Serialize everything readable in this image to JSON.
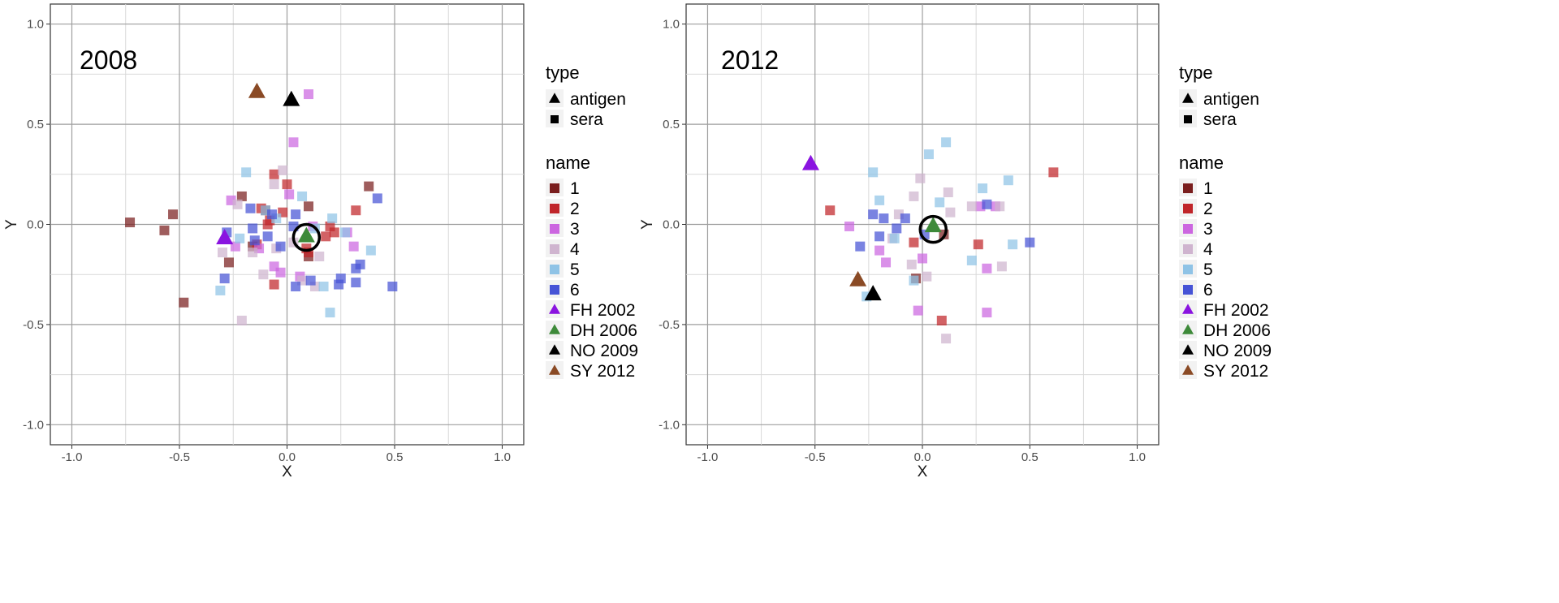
{
  "colors": {
    "1": "#7a1e1e",
    "2": "#c0252a",
    "3": "#cc66e0",
    "4": "#cfb4cf",
    "5": "#8fc3e6",
    "6": "#4653d6",
    "FH 2002": "#8a14e0",
    "DH 2006": "#3e8a3a",
    "NO 2009": "#000000",
    "SY 2012": "#8a4a25"
  },
  "legend": {
    "type_title": "type",
    "type_items": [
      {
        "label": "antigen",
        "shape": "triangle"
      },
      {
        "label": "sera",
        "shape": "square"
      }
    ],
    "name_title": "name",
    "name_items": [
      {
        "label": "1",
        "key": "1",
        "shape": "square"
      },
      {
        "label": "2",
        "key": "2",
        "shape": "square"
      },
      {
        "label": "3",
        "key": "3",
        "shape": "square"
      },
      {
        "label": "4",
        "key": "4",
        "shape": "square"
      },
      {
        "label": "5",
        "key": "5",
        "shape": "square"
      },
      {
        "label": "6",
        "key": "6",
        "shape": "square"
      },
      {
        "label": "FH 2002",
        "key": "FH 2002",
        "shape": "triangle"
      },
      {
        "label": "DH 2006",
        "key": "DH 2006",
        "shape": "triangle"
      },
      {
        "label": "NO 2009",
        "key": "NO 2009",
        "shape": "triangle"
      },
      {
        "label": "SY 2012",
        "key": "SY 2012",
        "shape": "triangle"
      }
    ]
  },
  "chart_data": [
    {
      "type": "scatter",
      "title": "2008",
      "xlabel": "X",
      "ylabel": "Y",
      "xlim": [
        -1.1,
        1.1
      ],
      "ylim": [
        -1.1,
        1.1
      ],
      "xticks": [
        -1.0,
        -0.5,
        0.0,
        0.5,
        1.0
      ],
      "yticks": [
        -1.0,
        -0.5,
        0.0,
        0.5,
        1.0
      ],
      "xtick_labels": [
        "-1.0",
        "-0.5",
        "0.0",
        "0.5",
        "1.0"
      ],
      "ytick_labels": [
        "-1.0",
        "-0.5",
        "0.0",
        "0.5",
        "1.0"
      ],
      "grid": true,
      "circled_point": [
        0.09,
        -0.065
      ],
      "antigens": [
        {
          "name": "FH 2002",
          "x": -0.29,
          "y": -0.07
        },
        {
          "name": "DH 2006",
          "x": 0.09,
          "y": -0.06
        },
        {
          "name": "NO 2009",
          "x": 0.02,
          "y": 0.62
        },
        {
          "name": "SY 2012",
          "x": -0.14,
          "y": 0.66
        }
      ],
      "sera": [
        {
          "group": "1",
          "points": [
            [
              -0.73,
              0.01
            ],
            [
              -0.57,
              -0.03
            ],
            [
              -0.53,
              0.05
            ],
            [
              -0.48,
              -0.39
            ],
            [
              -0.27,
              -0.19
            ],
            [
              -0.21,
              0.14
            ],
            [
              -0.16,
              -0.11
            ],
            [
              -0.1,
              0.07
            ],
            [
              0.1,
              0.09
            ],
            [
              0.38,
              0.19
            ],
            [
              0.1,
              -0.16
            ]
          ]
        },
        {
          "group": "2",
          "points": [
            [
              -0.14,
              -0.1
            ],
            [
              -0.09,
              0.0
            ],
            [
              -0.06,
              -0.3
            ],
            [
              -0.06,
              0.25
            ],
            [
              -0.02,
              0.06
            ],
            [
              0.0,
              0.2
            ],
            [
              -0.08,
              0.02
            ],
            [
              0.09,
              -0.12
            ],
            [
              0.2,
              -0.01
            ],
            [
              0.22,
              -0.04
            ],
            [
              0.32,
              0.07
            ],
            [
              0.18,
              -0.06
            ],
            [
              -0.12,
              0.08
            ],
            [
              0.1,
              -0.14
            ]
          ]
        },
        {
          "group": "3",
          "points": [
            [
              0.1,
              0.65
            ],
            [
              0.03,
              0.41
            ],
            [
              -0.26,
              0.12
            ],
            [
              -0.13,
              -0.12
            ],
            [
              -0.06,
              -0.21
            ],
            [
              -0.03,
              -0.24
            ],
            [
              0.01,
              0.15
            ],
            [
              0.28,
              -0.04
            ],
            [
              0.31,
              -0.11
            ],
            [
              -0.24,
              -0.11
            ],
            [
              0.06,
              -0.26
            ],
            [
              0.12,
              -0.01
            ]
          ]
        },
        {
          "group": "4",
          "points": [
            [
              -0.21,
              -0.48
            ],
            [
              -0.3,
              -0.14
            ],
            [
              -0.23,
              0.1
            ],
            [
              -0.11,
              -0.25
            ],
            [
              -0.06,
              0.2
            ],
            [
              -0.05,
              -0.12
            ],
            [
              0.03,
              -0.09
            ],
            [
              0.15,
              -0.16
            ],
            [
              0.07,
              -0.28
            ],
            [
              -0.16,
              -0.14
            ],
            [
              0.13,
              -0.31
            ],
            [
              -0.02,
              0.27
            ]
          ]
        },
        {
          "group": "5",
          "points": [
            [
              -0.31,
              -0.33
            ],
            [
              -0.19,
              0.26
            ],
            [
              -0.1,
              0.07
            ],
            [
              0.07,
              0.14
            ],
            [
              0.13,
              -0.02
            ],
            [
              0.21,
              0.03
            ],
            [
              0.27,
              -0.04
            ],
            [
              0.2,
              -0.44
            ],
            [
              0.39,
              -0.13
            ],
            [
              0.17,
              -0.31
            ],
            [
              -0.22,
              -0.07
            ],
            [
              -0.05,
              0.03
            ]
          ]
        },
        {
          "group": "6",
          "points": [
            [
              -0.29,
              -0.27
            ],
            [
              -0.28,
              -0.04
            ],
            [
              -0.17,
              0.08
            ],
            [
              -0.16,
              -0.02
            ],
            [
              -0.15,
              -0.08
            ],
            [
              -0.09,
              -0.06
            ],
            [
              -0.03,
              -0.11
            ],
            [
              0.04,
              0.05
            ],
            [
              0.04,
              -0.31
            ],
            [
              0.11,
              -0.28
            ],
            [
              0.24,
              -0.3
            ],
            [
              0.25,
              -0.27
            ],
            [
              0.32,
              -0.22
            ],
            [
              0.34,
              -0.2
            ],
            [
              0.42,
              0.13
            ],
            [
              0.49,
              -0.31
            ],
            [
              0.32,
              -0.29
            ],
            [
              -0.07,
              0.05
            ],
            [
              0.03,
              -0.01
            ]
          ]
        }
      ]
    },
    {
      "type": "scatter",
      "title": "2012",
      "xlabel": "X",
      "ylabel": "Y",
      "xlim": [
        -1.1,
        1.1
      ],
      "ylim": [
        -1.1,
        1.1
      ],
      "xticks": [
        -1.0,
        -0.5,
        0.0,
        0.5,
        1.0
      ],
      "yticks": [
        -1.0,
        -0.5,
        0.0,
        0.5,
        1.0
      ],
      "xtick_labels": [
        "-1.0",
        "-0.5",
        "0.0",
        "0.5",
        "1.0"
      ],
      "ytick_labels": [
        "-1.0",
        "-0.5",
        "0.0",
        "0.5",
        "1.0"
      ],
      "grid": true,
      "circled_point": [
        0.05,
        -0.025
      ],
      "antigens": [
        {
          "name": "FH 2002",
          "x": -0.52,
          "y": 0.3
        },
        {
          "name": "DH 2006",
          "x": 0.05,
          "y": -0.01
        },
        {
          "name": "NO 2009",
          "x": -0.23,
          "y": -0.35
        },
        {
          "name": "SY 2012",
          "x": -0.3,
          "y": -0.28
        }
      ],
      "sera": [
        {
          "group": "1",
          "points": [
            [
              -0.03,
              -0.27
            ],
            [
              0.1,
              -0.05
            ]
          ]
        },
        {
          "group": "2",
          "points": [
            [
              -0.43,
              0.07
            ],
            [
              -0.04,
              -0.09
            ],
            [
              0.09,
              -0.48
            ],
            [
              0.26,
              -0.1
            ],
            [
              0.61,
              0.26
            ]
          ]
        },
        {
          "group": "3",
          "points": [
            [
              -0.34,
              -0.01
            ],
            [
              -0.2,
              -0.13
            ],
            [
              -0.17,
              -0.19
            ],
            [
              -0.02,
              -0.43
            ],
            [
              0.0,
              -0.17
            ],
            [
              0.27,
              0.09
            ],
            [
              0.3,
              -0.22
            ],
            [
              0.3,
              -0.44
            ],
            [
              0.34,
              0.09
            ]
          ]
        },
        {
          "group": "4",
          "points": [
            [
              -0.01,
              0.23
            ],
            [
              -0.11,
              0.05
            ],
            [
              -0.14,
              -0.07
            ],
            [
              -0.05,
              -0.2
            ],
            [
              0.02,
              -0.26
            ],
            [
              0.11,
              -0.57
            ],
            [
              0.12,
              0.16
            ],
            [
              0.37,
              -0.21
            ],
            [
              0.36,
              0.09
            ],
            [
              0.23,
              0.09
            ],
            [
              -0.04,
              0.14
            ],
            [
              0.13,
              0.06
            ]
          ]
        },
        {
          "group": "5",
          "points": [
            [
              -0.23,
              0.26
            ],
            [
              -0.2,
              0.12
            ],
            [
              -0.13,
              -0.07
            ],
            [
              0.03,
              0.35
            ],
            [
              0.11,
              0.41
            ],
            [
              0.08,
              0.11
            ],
            [
              0.28,
              0.18
            ],
            [
              0.4,
              0.22
            ],
            [
              0.23,
              -0.18
            ],
            [
              0.42,
              -0.1
            ],
            [
              -0.26,
              -0.36
            ],
            [
              -0.04,
              -0.28
            ]
          ]
        },
        {
          "group": "6",
          "points": [
            [
              -0.23,
              0.05
            ],
            [
              -0.29,
              -0.11
            ],
            [
              -0.2,
              -0.06
            ],
            [
              -0.12,
              -0.02
            ],
            [
              -0.08,
              0.03
            ],
            [
              0.01,
              -0.05
            ],
            [
              0.3,
              0.1
            ],
            [
              0.5,
              -0.09
            ],
            [
              -0.18,
              0.03
            ]
          ]
        }
      ]
    }
  ]
}
